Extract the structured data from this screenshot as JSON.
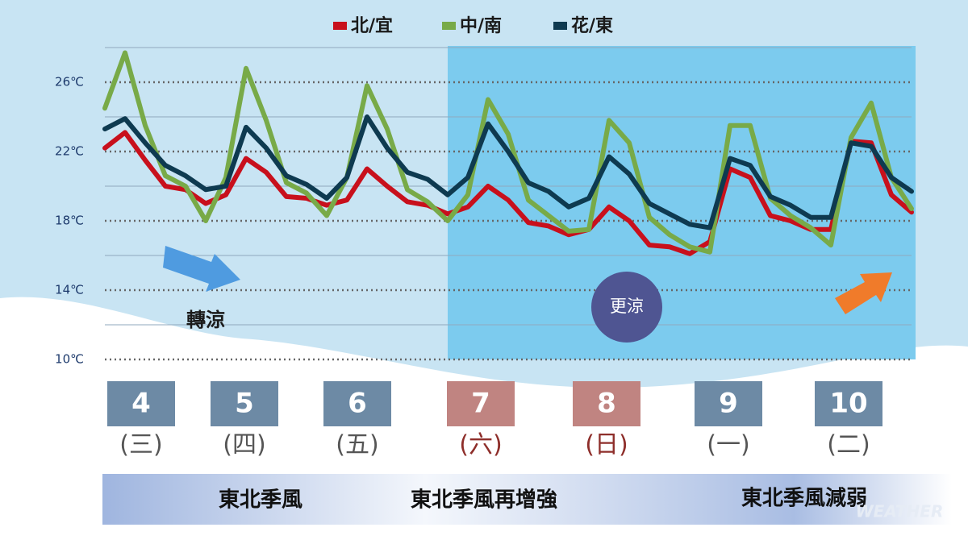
{
  "chart_data": {
    "type": "line",
    "legend": "top",
    "series": [
      {
        "name": "北/宜",
        "color": "#c8101c",
        "values": [
          22.2,
          23.1,
          21.5,
          20.0,
          19.8,
          19.0,
          19.5,
          21.6,
          20.8,
          19.4,
          19.3,
          18.9,
          19.2,
          21.0,
          20.0,
          19.1,
          18.9,
          18.4,
          18.8,
          20.0,
          19.2,
          17.9,
          17.7,
          17.2,
          17.5,
          18.8,
          18.0,
          16.6,
          16.5,
          16.1,
          16.8,
          21.0,
          20.5,
          18.3,
          18.0,
          17.5,
          17.5,
          22.6,
          22.5,
          19.5,
          18.5
        ]
      },
      {
        "name": "中/南",
        "color": "#78aa48",
        "values": [
          24.5,
          27.7,
          23.5,
          20.6,
          20.0,
          18.0,
          20.5,
          26.8,
          23.8,
          20.2,
          19.6,
          18.3,
          20.5,
          25.8,
          23.3,
          19.8,
          19.1,
          18.0,
          19.5,
          25.0,
          23.0,
          19.2,
          18.3,
          17.4,
          17.5,
          23.8,
          22.5,
          18.2,
          17.2,
          16.5,
          16.2,
          23.5,
          23.5,
          19.3,
          18.3,
          17.6,
          16.6,
          22.8,
          24.8,
          20.5,
          18.7
        ]
      },
      {
        "name": "花/東",
        "color": "#0e3a50",
        "values": [
          23.3,
          23.9,
          22.5,
          21.2,
          20.6,
          19.8,
          20.0,
          23.4,
          22.2,
          20.6,
          20.1,
          19.3,
          20.5,
          24.0,
          22.2,
          20.8,
          20.4,
          19.5,
          20.5,
          23.6,
          22.0,
          20.2,
          19.7,
          18.8,
          19.3,
          21.7,
          20.7,
          19.0,
          18.4,
          17.8,
          17.6,
          21.6,
          21.2,
          19.4,
          18.9,
          18.2,
          18.2,
          22.5,
          22.3,
          20.5,
          19.7
        ]
      }
    ],
    "ylim": [
      10,
      28
    ],
    "yticks": [
      {
        "value": 10,
        "label": "10℃"
      },
      {
        "value": 14,
        "label": "14℃"
      },
      {
        "value": 18,
        "label": "18℃"
      },
      {
        "value": 22,
        "label": "22℃"
      },
      {
        "value": 26,
        "label": "26℃"
      }
    ],
    "minor_grid": [
      12,
      16,
      20,
      24,
      28
    ],
    "days": [
      {
        "date": "4",
        "weekday": "(三)",
        "color": "#6d8aa5",
        "weekday_color": "#555555"
      },
      {
        "date": "5",
        "weekday": "(四)",
        "color": "#6d8aa5",
        "weekday_color": "#555555"
      },
      {
        "date": "6",
        "weekday": "(五)",
        "color": "#6d8aa5",
        "weekday_color": "#555555"
      },
      {
        "date": "7",
        "weekday": "(六)",
        "color": "#c08481",
        "weekday_color": "#8e2e2a"
      },
      {
        "date": "8",
        "weekday": "(日)",
        "color": "#c08481",
        "weekday_color": "#8e2e2a"
      },
      {
        "date": "9",
        "weekday": "(一)",
        "color": "#6d8aa5",
        "weekday_color": "#555555"
      },
      {
        "date": "10",
        "weekday": "(二)",
        "color": "#6d8aa5",
        "weekday_color": "#555555"
      }
    ],
    "annotations": [
      "轉涼",
      "更涼"
    ],
    "phases": [
      "東北季風",
      "東北季風再增強",
      "東北季風減弱"
    ],
    "watermark": "WEATHER"
  }
}
